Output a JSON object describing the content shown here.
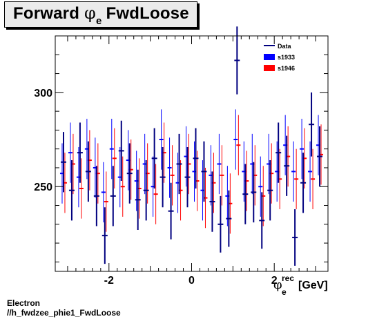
{
  "title": {
    "prefix": "Forward",
    "symbol": "φ",
    "subscript": "e",
    "suffix": "FwdLoose"
  },
  "footer": {
    "line1": "Electron",
    "line2": "//h_fwdzee_phie1_FwdLoose"
  },
  "colors": {
    "data": "#00007f",
    "s1933": "#0000ff",
    "s1946": "#ff0000",
    "frame": "#000000"
  },
  "chart_data": {
    "type": "scatter",
    "title": "Forward φe FwdLoose",
    "xlabel": {
      "symbol": "φ",
      "superscript": "rec",
      "subscript": "e",
      "unit": "[GeV]"
    },
    "ylabel": "",
    "xlim": [
      -3.3,
      3.3
    ],
    "ylim": [
      205,
      330
    ],
    "xticks": [
      -2,
      0,
      2
    ],
    "xtick_labels": [
      "-2",
      "0",
      "2"
    ],
    "yticks": [
      250,
      300
    ],
    "ytick_labels": [
      "250",
      "300"
    ],
    "legend": {
      "position": "top-right",
      "entries": [
        "Data",
        "s1933",
        "s1946"
      ]
    },
    "x": [
      -3.1,
      -2.9,
      -2.7,
      -2.5,
      -2.3,
      -2.1,
      -1.9,
      -1.7,
      -1.5,
      -1.3,
      -1.1,
      -0.9,
      -0.7,
      -0.5,
      -0.3,
      -0.1,
      0.1,
      0.3,
      0.5,
      0.7,
      0.9,
      1.1,
      1.3,
      1.5,
      1.7,
      1.9,
      2.1,
      2.3,
      2.5,
      2.7,
      2.9,
      3.1
    ],
    "series": [
      {
        "name": "Data",
        "values": [
          263,
          248,
          268,
          258,
          245,
          224,
          245,
          269,
          257,
          243,
          248,
          265,
          255,
          237,
          262,
          255,
          265,
          258,
          242,
          230,
          233,
          317,
          246,
          247,
          232,
          248,
          268,
          261,
          223,
          252,
          283,
          266
        ],
        "errors": [
          16,
          16,
          16,
          16,
          16,
          15,
          16,
          16,
          16,
          16,
          16,
          16,
          16,
          15,
          16,
          16,
          16,
          16,
          16,
          15,
          15,
          18,
          16,
          16,
          15,
          16,
          16,
          16,
          15,
          16,
          17,
          16
        ]
      },
      {
        "name": "s1933",
        "values": [
          257,
          268,
          255,
          270,
          260,
          247,
          270,
          255,
          264,
          253,
          262,
          250,
          275,
          260,
          252,
          266,
          258,
          248,
          256,
          262,
          245,
          275,
          258,
          262,
          250,
          262,
          258,
          272,
          258,
          270,
          258,
          272
        ],
        "errors": [
          16,
          16,
          16,
          16,
          16,
          16,
          16,
          16,
          16,
          16,
          16,
          16,
          16,
          16,
          16,
          16,
          16,
          16,
          16,
          16,
          16,
          16,
          16,
          16,
          16,
          16,
          16,
          16,
          16,
          16,
          16,
          16
        ]
      },
      {
        "name": "s1946",
        "values": [
          252,
          262,
          249,
          264,
          257,
          242,
          265,
          250,
          259,
          249,
          257,
          246,
          268,
          256,
          248,
          262,
          253,
          244,
          252,
          256,
          241,
          272,
          253,
          256,
          245,
          257,
          254,
          266,
          254,
          265,
          254,
          267
        ],
        "errors": [
          16,
          16,
          16,
          16,
          16,
          16,
          16,
          16,
          16,
          16,
          16,
          16,
          16,
          16,
          16,
          16,
          16,
          16,
          16,
          16,
          16,
          16,
          16,
          16,
          16,
          16,
          16,
          16,
          16,
          16,
          16,
          16
        ]
      }
    ]
  }
}
